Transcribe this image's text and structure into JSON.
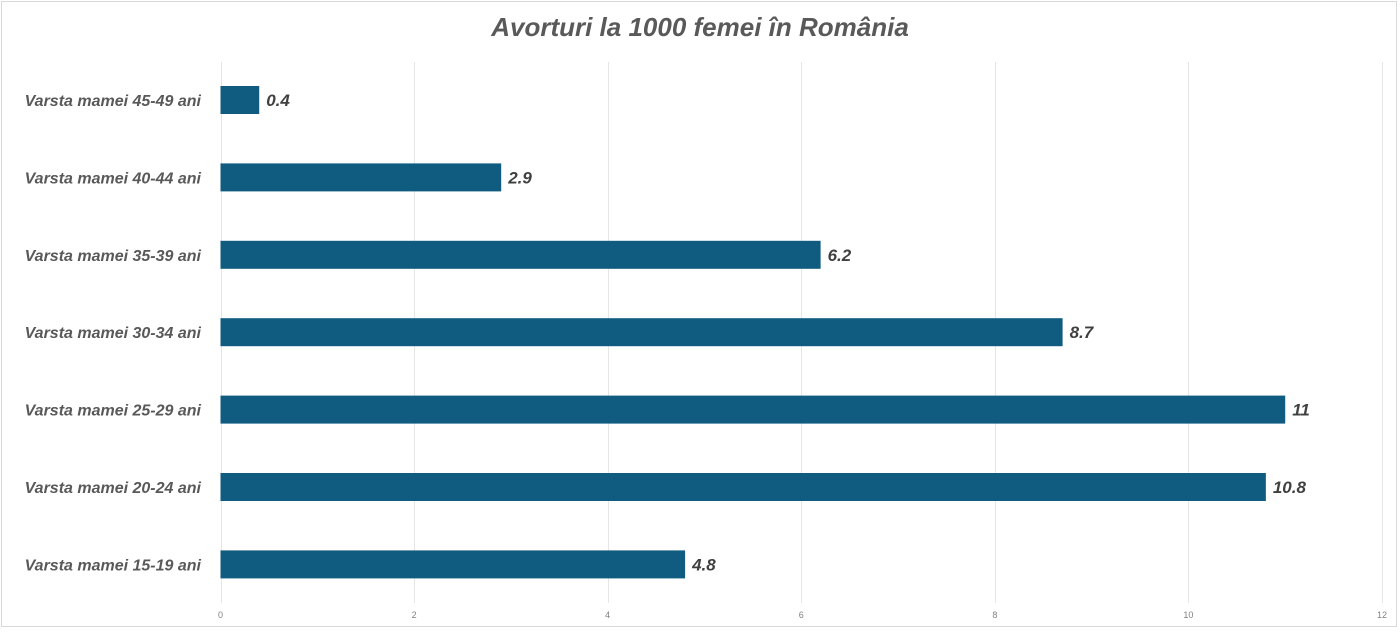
{
  "chart_data": {
    "type": "bar",
    "orientation": "horizontal",
    "title": "Avorturi la 1000 femei în România",
    "xlabel": "",
    "ylabel": "",
    "categories": [
      "Varsta mamei 45-49 ani",
      "Varsta mamei 40-44 ani",
      "Varsta mamei 35-39 ani",
      "Varsta mamei 30-34 ani",
      "Varsta mamei 25-29 ani",
      "Varsta mamei 20-24 ani",
      "Varsta mamei 15-19 ani"
    ],
    "values": [
      0.4,
      2.9,
      6.2,
      8.7,
      11,
      10.8,
      4.8
    ],
    "data_labels": [
      "0.4",
      "2.9",
      "6.2",
      "8.7",
      "11",
      "10.8",
      "4.8"
    ],
    "xlim": [
      0,
      12
    ],
    "x_ticks": [
      0,
      2,
      4,
      6,
      8,
      10,
      12
    ],
    "x_tick_labels": [
      "0",
      "2",
      "4",
      "6",
      "8",
      "10",
      "12"
    ],
    "grid": true,
    "bar_color": "#0f5c80",
    "legend": "none"
  }
}
